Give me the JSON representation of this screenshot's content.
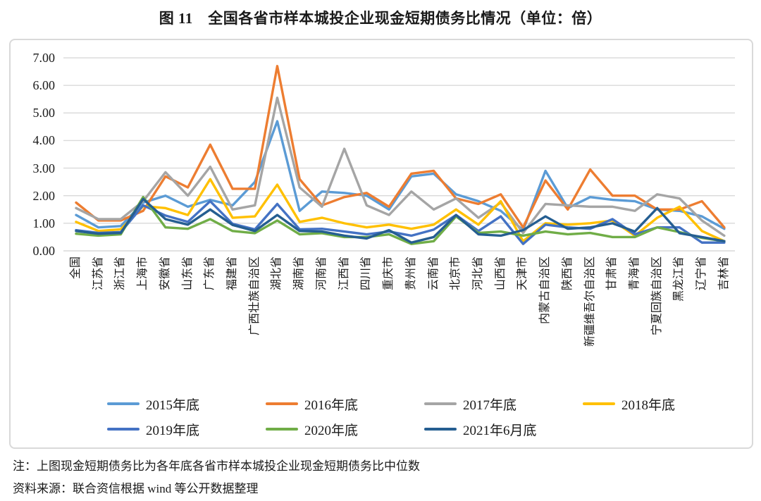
{
  "title": "图 11　全国各省市样本城投企业现金短期债务比情况（单位：倍）",
  "notes": {
    "note": "注：上图现金短期债务比为各年底各省市样本城投企业现金短期债务比中位数",
    "source": "资料来源：联合资信根据 wind 等公开数据整理"
  },
  "chart_data": {
    "type": "line",
    "title": "图 11　全国各省市样本城投企业现金短期债务比情况（单位：倍）",
    "unit": "倍",
    "grid": "horizontal",
    "gridline_color": "#d9d9d9",
    "legend_position": "bottom",
    "ylim": [
      0,
      7
    ],
    "ytick_step": 1,
    "categories": [
      "全国",
      "江苏省",
      "浙江省",
      "上海市",
      "安徽省",
      "山东省",
      "广东省",
      "福建省",
      "广西壮族自治区",
      "湖北省",
      "湖南省",
      "河南省",
      "江西省",
      "四川省",
      "重庆市",
      "贵州省",
      "云南省",
      "北京市",
      "河北省",
      "山西省",
      "天津市",
      "内蒙古自治区",
      "陕西省",
      "新疆维吾尔自治区",
      "甘肃省",
      "青海省",
      "宁夏回族自治区",
      "黑龙江省",
      "辽宁省",
      "吉林省"
    ],
    "series": [
      {
        "name": "2015年底",
        "color": "#5B9BD5",
        "values": [
          1.3,
          0.85,
          0.9,
          1.75,
          2.0,
          1.6,
          1.85,
          1.65,
          2.5,
          4.7,
          1.45,
          2.15,
          2.1,
          2.0,
          1.5,
          2.7,
          2.8,
          2.05,
          1.8,
          1.45,
          0.75,
          2.9,
          1.55,
          1.95,
          1.85,
          1.8,
          1.5,
          1.45,
          1.25,
          0.8
        ]
      },
      {
        "name": "2016年底",
        "color": "#ED7D31",
        "values": [
          1.75,
          1.1,
          1.1,
          1.45,
          2.7,
          2.3,
          3.85,
          2.25,
          2.25,
          6.7,
          2.6,
          1.65,
          1.95,
          2.1,
          1.6,
          2.8,
          2.9,
          1.9,
          1.7,
          2.05,
          0.85,
          2.55,
          1.5,
          2.95,
          2.0,
          2.0,
          1.5,
          1.5,
          1.8,
          0.85
        ]
      },
      {
        "name": "2017年底",
        "color": "#A5A5A5",
        "values": [
          1.55,
          1.15,
          1.15,
          1.8,
          2.85,
          2.0,
          3.05,
          1.5,
          1.65,
          5.55,
          2.3,
          1.6,
          3.7,
          1.65,
          1.3,
          2.15,
          1.5,
          1.9,
          1.2,
          1.75,
          0.65,
          1.7,
          1.65,
          1.6,
          1.6,
          1.45,
          2.05,
          1.9,
          1.1,
          0.55
        ]
      },
      {
        "name": "2018年底",
        "color": "#FFC000",
        "values": [
          1.05,
          0.72,
          0.78,
          1.62,
          1.55,
          1.3,
          2.6,
          1.2,
          1.25,
          2.4,
          1.05,
          1.2,
          1.0,
          0.85,
          0.95,
          0.8,
          0.95,
          1.5,
          0.95,
          1.8,
          0.35,
          1.0,
          0.95,
          1.0,
          1.1,
          0.55,
          1.2,
          1.6,
          0.72,
          0.35
        ]
      },
      {
        "name": "2019年底",
        "color": "#4472C4",
        "values": [
          0.75,
          0.65,
          0.68,
          1.65,
          1.28,
          1.05,
          1.8,
          0.98,
          0.78,
          1.7,
          0.78,
          0.8,
          0.7,
          0.6,
          0.7,
          0.55,
          0.77,
          1.3,
          0.72,
          1.25,
          0.25,
          0.95,
          0.85,
          0.8,
          1.15,
          0.6,
          0.85,
          0.85,
          0.3,
          0.3
        ]
      },
      {
        "name": "2020年底",
        "color": "#70AD47",
        "values": [
          0.62,
          0.55,
          0.6,
          1.95,
          0.85,
          0.8,
          1.15,
          0.72,
          0.64,
          1.1,
          0.6,
          0.64,
          0.5,
          0.5,
          0.6,
          0.25,
          0.35,
          1.25,
          0.65,
          0.7,
          0.55,
          0.7,
          0.6,
          0.65,
          0.5,
          0.5,
          0.85,
          0.68,
          0.47,
          0.35
        ]
      },
      {
        "name": "2021年6月底",
        "color": "#255E91",
        "values": [
          0.72,
          0.62,
          0.65,
          1.88,
          1.15,
          0.95,
          1.5,
          0.94,
          0.72,
          1.3,
          0.72,
          0.7,
          0.55,
          0.45,
          0.75,
          0.3,
          0.5,
          1.3,
          0.6,
          0.55,
          0.75,
          1.25,
          0.8,
          0.85,
          1.0,
          0.7,
          1.55,
          0.64,
          0.5,
          0.35
        ]
      }
    ]
  }
}
